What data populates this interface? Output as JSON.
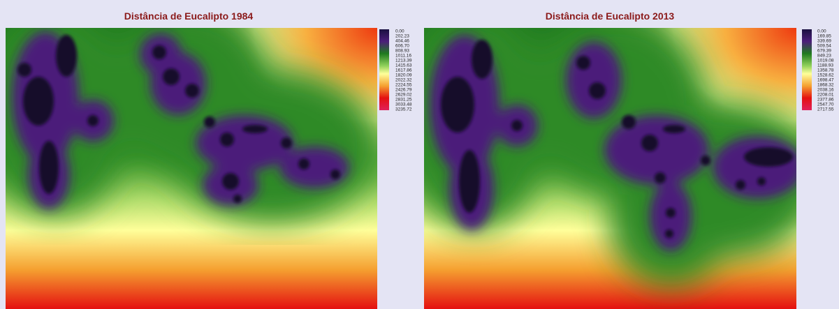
{
  "maps": [
    {
      "title": "Distância de Eucalipto 1984",
      "legend": [
        "0.00",
        "202.23",
        "404.46",
        "606.70",
        "808.93",
        "1011.16",
        "1213.39",
        "1415.63",
        "1617.86",
        "1820.09",
        "2022.32",
        "2224.55",
        "2426.79",
        "2629.02",
        "2831.25",
        "3033.48",
        "3235.72"
      ]
    },
    {
      "title": "Distância de Eucalipto 2013",
      "legend": [
        "0.00",
        "169.85",
        "339.69",
        "509.54",
        "679.39",
        "849.23",
        "1019.08",
        "1188.93",
        "1358.78",
        "1528.62",
        "1698.47",
        "1868.32",
        "2038.16",
        "2208.01",
        "2377.86",
        "2547.70",
        "2717.55"
      ]
    }
  ]
}
